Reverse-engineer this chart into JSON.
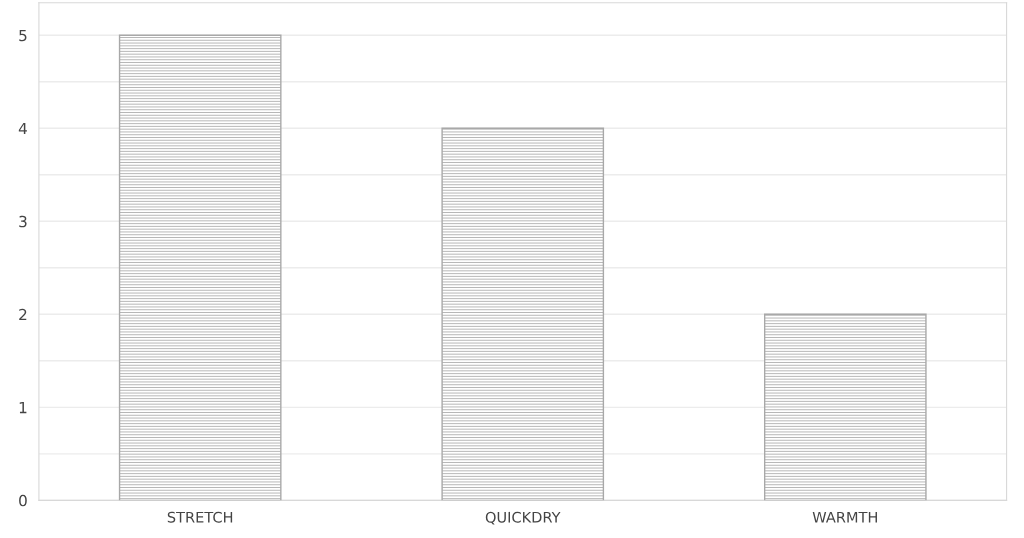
{
  "chart_data": {
    "type": "bar",
    "categories": [
      "STRETCH",
      "QUICKDRY",
      "WARMTH"
    ],
    "values": [
      5,
      4,
      2
    ],
    "color": "#a8a8a8",
    "ylim": [
      0,
      5.35
    ],
    "yticks": [
      0,
      {
        "value": 0.5,
        "label": null
      },
      1,
      {
        "value": 1.5,
        "label": null
      },
      2,
      {
        "value": 2.5,
        "label": null
      },
      3,
      {
        "value": 3.5,
        "label": null
      },
      4,
      {
        "value": 4.5,
        "label": null
      },
      5
    ],
    "grid": "y"
  }
}
